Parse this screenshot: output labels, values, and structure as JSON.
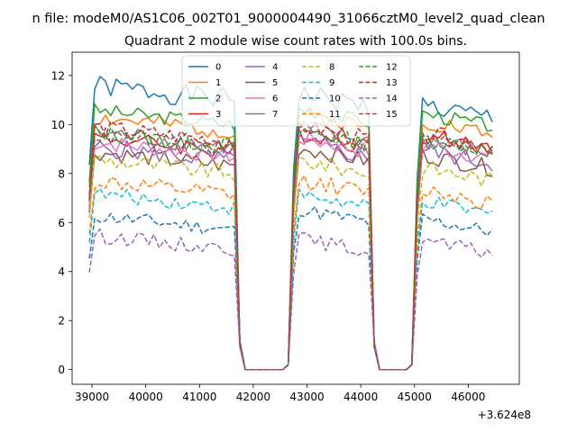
{
  "suptitle": "n file: modeM0/AS1C06_002T01_9000004490_31066cztM0_level2_quad_clean",
  "chart_data": {
    "type": "line",
    "title": "Quadrant 2 module wise count rates with 100.0s bins.",
    "xlabel": "",
    "ylabel": "",
    "x_offset_label": "+3.624e8",
    "x_offset": 362400000,
    "xlim": [
      38630,
      46950
    ],
    "ylim": [
      -0.6,
      12.95
    ],
    "xticks": [
      39000,
      40000,
      41000,
      42000,
      43000,
      44000,
      45000,
      46000
    ],
    "yticks": [
      0,
      2,
      4,
      6,
      8,
      10,
      12
    ],
    "legend_location": "upper center",
    "segments": [
      {
        "x_start": 38950,
        "x_end": 41650
      },
      {
        "x_start": 42750,
        "x_end": 44150
      },
      {
        "x_start": 45050,
        "x_end": 46500
      }
    ],
    "series": [
      {
        "name": "0",
        "color": "#1f77b4",
        "dash": "solid",
        "levels": [
          11.3,
          11.0,
          10.5
        ],
        "noise": 0.45,
        "seed": 1
      },
      {
        "name": "1",
        "color": "#ff7f0e",
        "dash": "solid",
        "levels": [
          10.0,
          10.2,
          9.9
        ],
        "noise": 0.35,
        "seed": 2
      },
      {
        "name": "2",
        "color": "#2ca02c",
        "dash": "solid",
        "levels": [
          10.3,
          10.4,
          10.2
        ],
        "noise": 0.3,
        "seed": 3
      },
      {
        "name": "3",
        "color": "#d62728",
        "dash": "solid",
        "levels": [
          9.2,
          9.4,
          9.3
        ],
        "noise": 0.35,
        "seed": 4
      },
      {
        "name": "4",
        "color": "#9467bd",
        "dash": "solid",
        "levels": [
          8.8,
          9.0,
          8.7
        ],
        "noise": 0.4,
        "seed": 5
      },
      {
        "name": "5",
        "color": "#8c564b",
        "dash": "solid",
        "levels": [
          8.6,
          8.8,
          8.5
        ],
        "noise": 0.35,
        "seed": 6
      },
      {
        "name": "6",
        "color": "#e377c2",
        "dash": "solid",
        "levels": [
          9.0,
          9.2,
          8.9
        ],
        "noise": 0.35,
        "seed": 7
      },
      {
        "name": "7",
        "color": "#7f7f7f",
        "dash": "solid",
        "levels": [
          9.4,
          9.6,
          9.1
        ],
        "noise": 0.4,
        "seed": 8
      },
      {
        "name": "8",
        "color": "#bcbd22",
        "dash": "dashed",
        "levels": [
          8.3,
          8.3,
          8.0
        ],
        "noise": 0.35,
        "seed": 9
      },
      {
        "name": "9",
        "color": "#17becf",
        "dash": "dashed",
        "levels": [
          6.9,
          6.9,
          6.6
        ],
        "noise": 0.3,
        "seed": 10
      },
      {
        "name": "10",
        "color": "#1f77b4",
        "dash": "dashed",
        "levels": [
          6.0,
          6.3,
          5.9
        ],
        "noise": 0.3,
        "seed": 11
      },
      {
        "name": "11",
        "color": "#ff7f0e",
        "dash": "dashed",
        "levels": [
          7.4,
          7.5,
          7.1
        ],
        "noise": 0.35,
        "seed": 12
      },
      {
        "name": "12",
        "color": "#2ca02c",
        "dash": "dashed",
        "levels": [
          9.4,
          9.5,
          9.2
        ],
        "noise": 0.35,
        "seed": 13
      },
      {
        "name": "13",
        "color": "#d62728",
        "dash": "dashed",
        "levels": [
          9.6,
          9.7,
          9.4
        ],
        "noise": 0.35,
        "seed": 14
      },
      {
        "name": "14",
        "color": "#9467bd",
        "dash": "dashed",
        "levels": [
          5.2,
          5.1,
          5.0
        ],
        "noise": 0.3,
        "seed": 15
      },
      {
        "name": "15",
        "color": "#8c564b",
        "dash": "dashed",
        "levels": [
          9.3,
          9.5,
          9.2
        ],
        "noise": 0.35,
        "seed": 16
      }
    ]
  }
}
